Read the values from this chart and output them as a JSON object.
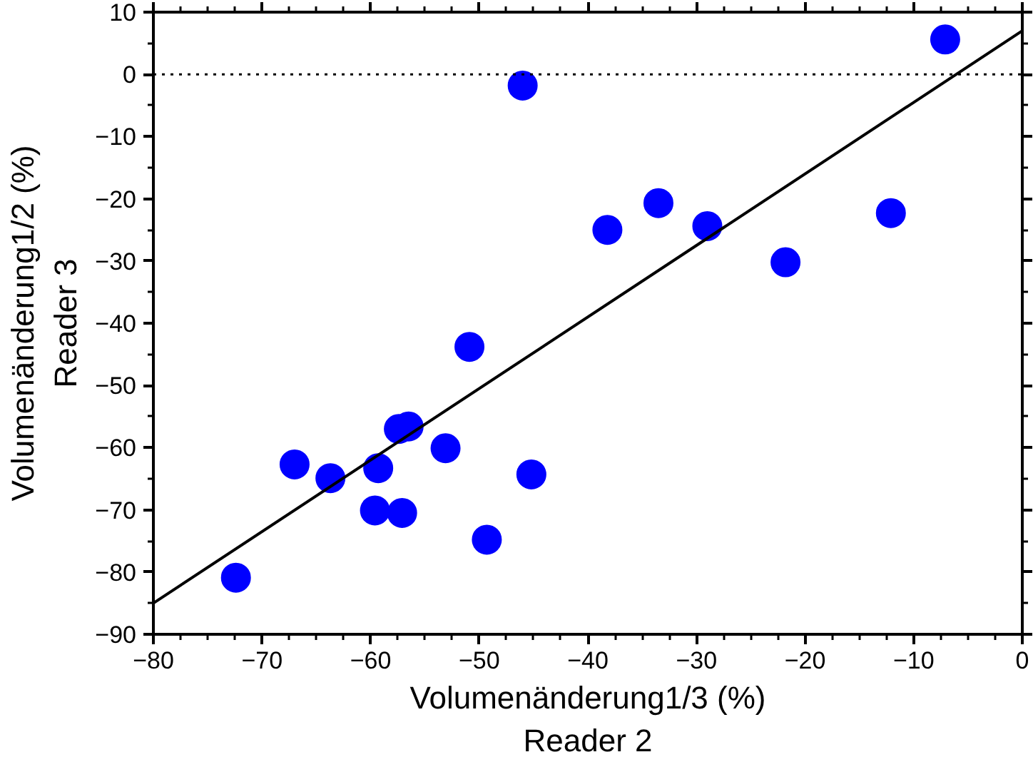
{
  "chart_data": {
    "type": "scatter",
    "xlabel": "Volumenänderung1/3 (%)\nReader 2",
    "ylabel": "Volumenänderung1/2 (%)\nReader 3",
    "series": [
      {
        "color": "#0000ff",
        "marker": "circle",
        "x": [
          -7.1,
          -46.0,
          -38.2,
          -33.5,
          -29.0,
          -21.8,
          -12.1,
          -50.9,
          -67.0,
          -63.7,
          -59.3,
          -59.6,
          -57.1,
          -57.4,
          -56.5,
          -53.1,
          -45.2,
          -49.3,
          -72.4
        ],
        "values": [
          5.6,
          -1.8,
          -25.0,
          -20.7,
          -24.4,
          -30.2,
          -22.3,
          -43.8,
          -62.7,
          -64.9,
          -63.3,
          -70.1,
          -70.5,
          -57.0,
          -56.6,
          -60.1,
          -64.3,
          -74.8,
          -80.9
        ]
      },
      {
        "type": "line",
        "color": "#000000",
        "line_style": "solid",
        "x": [
          -80,
          0
        ],
        "values": [
          -85,
          7
        ]
      }
    ],
    "xlim": [
      -80,
      0
    ],
    "ylim": [
      -90,
      10
    ],
    "xticks": [
      -80,
      -70,
      -60,
      -50,
      -40,
      -30,
      -20,
      -10,
      0
    ],
    "yticks": [
      -90,
      -80,
      -70,
      -60,
      -50,
      -40,
      -30,
      -20,
      -10,
      0,
      10
    ],
    "ref_lines": [
      {
        "axis": "y",
        "value": 0,
        "color": "#000000",
        "line_style": "dotted"
      }
    ],
    "grid": false
  }
}
